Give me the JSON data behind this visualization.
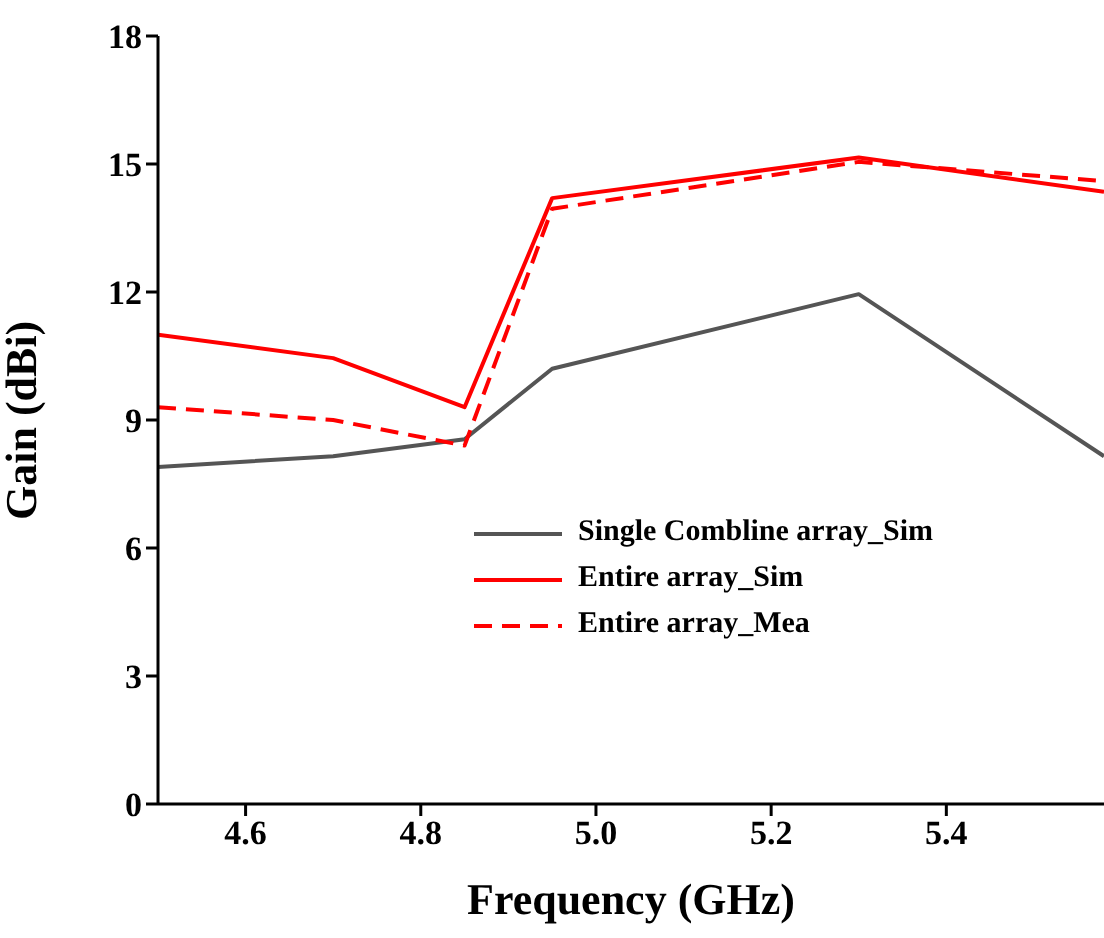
{
  "chart_data": {
    "type": "line",
    "xlabel": "Frequency (GHz)",
    "ylabel": "Gain (dBi)",
    "x": [
      4.5,
      4.7,
      4.85,
      4.95,
      5.3,
      5.58
    ],
    "series": [
      {
        "name": "Single Combline array_Sim",
        "color": "#555555",
        "values": [
          7.9,
          8.15,
          8.55,
          10.2,
          11.95,
          8.15
        ],
        "line_style": "solid"
      },
      {
        "name": "Entire array_Sim",
        "color": "#ff0000",
        "values": [
          11.0,
          10.45,
          9.3,
          14.2,
          15.15,
          14.35
        ],
        "line_style": "solid"
      },
      {
        "name": "Entire array_Mea",
        "color": "#ff0000",
        "values": [
          9.3,
          9.0,
          8.4,
          13.95,
          15.05,
          14.6
        ],
        "line_style": "dashed"
      }
    ],
    "xlim": [
      4.5,
      5.58
    ],
    "xticks": [
      {
        "value": 4.6,
        "label": "4.6"
      },
      {
        "value": 4.8,
        "label": "4.8"
      },
      {
        "value": 5,
        "label": "5.0"
      },
      {
        "value": 5.2,
        "label": "5.2"
      },
      {
        "value": 5.4,
        "label": "5.4"
      }
    ],
    "ylim": [
      0,
      18
    ],
    "yticks": [
      0,
      3,
      6,
      9,
      12,
      15,
      18
    ],
    "grid": false,
    "legend": "bottom right",
    "marker": "none"
  }
}
